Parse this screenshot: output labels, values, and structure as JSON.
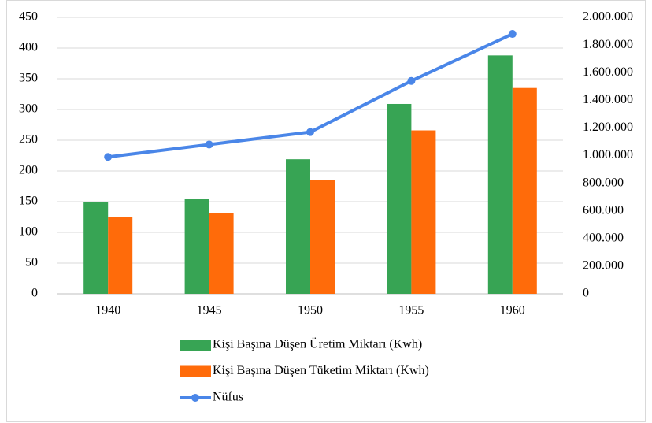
{
  "chart_data": {
    "type": "bar",
    "categories": [
      "1940",
      "1945",
      "1950",
      "1955",
      "1960"
    ],
    "series": [
      {
        "name": "Kişi Başına Düşen Üretim Miktarı (Kwh)",
        "color": "#37a454",
        "values": [
          149,
          155,
          219,
          309,
          388
        ]
      },
      {
        "name": "Kişi Başına Düşen Tüketim Miktarı (Kwh)",
        "color": "#ff6b0a",
        "values": [
          125,
          132,
          185,
          266,
          335
        ]
      },
      {
        "name": "Nüfus",
        "color": "#4a86e8",
        "type": "line",
        "axis": "y2",
        "values": [
          990000,
          1080000,
          1170000,
          1540000,
          1880000
        ]
      }
    ],
    "ylim": [
      0,
      450
    ],
    "yticks": [
      0,
      50,
      100,
      150,
      200,
      250,
      300,
      350,
      400,
      450
    ],
    "y2lim": [
      0,
      2000000
    ],
    "y2ticks": [
      0,
      {
        "value": 200000,
        "label": "200.000"
      },
      {
        "value": 400000,
        "label": "400.000"
      },
      {
        "value": 600000,
        "label": "600.000"
      },
      {
        "value": 800000,
        "label": "800.000"
      },
      {
        "value": 1000000,
        "label": "1.000.000"
      },
      {
        "value": 1200000,
        "label": "1.200.000"
      },
      {
        "value": 1400000,
        "label": "1.400.000"
      },
      {
        "value": 1600000,
        "label": "1.600.000"
      },
      {
        "value": 1800000,
        "label": "1.800.000"
      },
      {
        "value": 2000000,
        "label": "2.000.000"
      }
    ],
    "grid": true,
    "legend": "bottom"
  }
}
